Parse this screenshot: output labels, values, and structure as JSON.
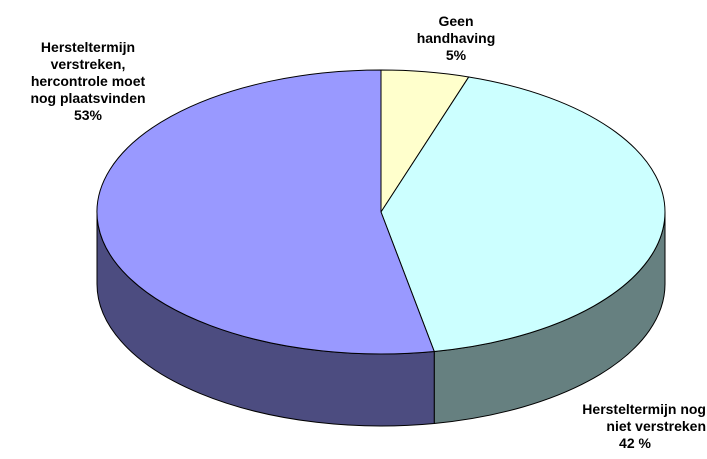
{
  "chart_data": {
    "type": "pie",
    "style": "3d",
    "title": "",
    "slices": [
      {
        "label_lines": [
          "Geen",
          "handhaving",
          "5%"
        ],
        "value": 5,
        "top_color": "#FFFFCC",
        "side_color": "#8C8C5A"
      },
      {
        "label_lines": [
          "Hersteltermijn nog",
          "niet verstreken",
          "42 %"
        ],
        "value": 42,
        "top_color": "#CCFFFF",
        "side_color": "#668080"
      },
      {
        "label_lines": [
          "Hersteltermijn",
          "verstreken,",
          "hercontrole moet",
          "nog plaatsvinden",
          "53%"
        ],
        "value": 53,
        "top_color": "#9999FF",
        "side_color": "#4C4C80"
      }
    ]
  }
}
